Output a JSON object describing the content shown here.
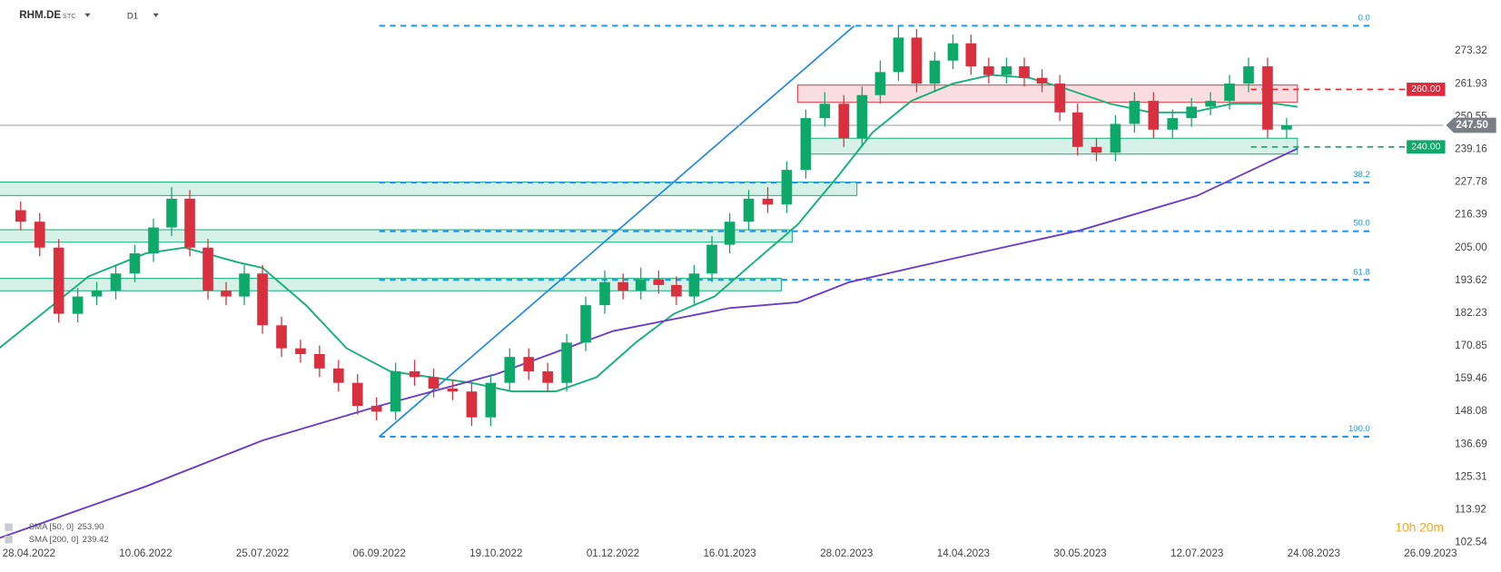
{
  "chart_data": {
    "type": "candlestick",
    "symbol": "RHM.DE",
    "symbol_tag": "STC",
    "interval": "D1",
    "timer": "10h 20m",
    "up_color": "#0fa86b",
    "down_color": "#d9303f",
    "ylim": [
      100.55,
      291.05
    ],
    "yticks": [
      {
        "value": 102.54,
        "label": "102.54"
      },
      {
        "value": 113.92,
        "label": "113.92"
      },
      {
        "value": 125.31,
        "label": "125.31"
      },
      {
        "value": 136.69,
        "label": "136.69"
      },
      148.08,
      {
        "value": 159.46,
        "label": "159.46"
      },
      {
        "value": 170.85,
        "label": "170.85"
      },
      {
        "value": 182.23,
        "label": "182.23"
      },
      {
        "value": 193.62,
        "label": "193.62"
      },
      {
        "value": 205,
        "label": "205.00"
      },
      {
        "value": 216.39,
        "label": "216.39"
      },
      {
        "value": 227.78,
        "label": "227.78"
      },
      {
        "value": 239.16,
        "label": "239.16"
      },
      {
        "value": 250.55,
        "label": "250.55"
      },
      {
        "value": 261.93,
        "label": "261.93"
      },
      {
        "value": 273.32,
        "label": "273.32"
      }
    ],
    "xticks": [
      {
        "value": "2022-04-28",
        "label": "28.04.2022"
      },
      {
        "value": "2022-06-10",
        "label": "10.06.2022"
      },
      {
        "value": "2022-07-25",
        "label": "25.07.2022"
      },
      {
        "value": "2022-09-06",
        "label": "06.09.2022"
      },
      {
        "value": "2022-10-19",
        "label": "19.10.2022"
      },
      {
        "value": "2022-12-01",
        "label": "01.12.2022"
      },
      {
        "value": "2023-01-16",
        "label": "16.01.2023"
      },
      {
        "value": "2023-02-28",
        "label": "28.02.2023"
      },
      {
        "value": "2023-04-14",
        "label": "14.04.2023"
      },
      {
        "value": "2023-05-30",
        "label": "30.05.2023"
      },
      {
        "value": "2023-07-12",
        "label": "12.07.2023"
      },
      {
        "value": "2023-08-24",
        "label": "24.08.2023"
      },
      {
        "value": "2023-09-26",
        "label": "26.09.2023"
      }
    ],
    "candles": {
      "x": [
        "2022-04-25",
        "2022-05-02",
        "2022-05-09",
        "2022-05-16",
        "2022-05-23",
        "2022-05-30",
        "2022-06-06",
        "2022-06-13",
        "2022-06-20",
        "2022-06-27",
        "2022-07-04",
        "2022-07-11",
        "2022-07-18",
        "2022-07-25",
        "2022-08-01",
        "2022-08-08",
        "2022-08-15",
        "2022-08-22",
        "2022-08-29",
        "2022-09-05",
        "2022-09-12",
        "2022-09-19",
        "2022-09-26",
        "2022-10-03",
        "2022-10-10",
        "2022-10-17",
        "2022-10-24",
        "2022-10-31",
        "2022-11-07",
        "2022-11-14",
        "2022-11-21",
        "2022-11-28",
        "2022-12-05",
        "2022-12-12",
        "2022-12-19",
        "2022-12-26",
        "2023-01-02",
        "2023-01-09",
        "2023-01-16",
        "2023-01-23",
        "2023-01-30",
        "2023-02-06",
        "2023-02-13",
        "2023-02-20",
        "2023-02-27",
        "2023-03-06",
        "2023-03-13",
        "2023-03-20",
        "2023-03-27",
        "2023-04-03",
        "2023-04-10",
        "2023-04-17",
        "2023-04-24",
        "2023-05-01",
        "2023-05-08",
        "2023-05-15",
        "2023-05-22",
        "2023-05-29",
        "2023-06-05",
        "2023-06-12",
        "2023-06-19",
        "2023-06-26",
        "2023-07-03",
        "2023-07-10",
        "2023-07-17",
        "2023-07-24",
        "2023-07-31",
        "2023-08-07",
        "2023-08-14"
      ],
      "open": [
        218,
        214,
        205,
        182,
        188,
        190,
        196,
        203,
        212,
        222,
        205,
        190,
        188,
        196,
        178,
        170,
        168,
        163,
        158,
        150,
        148,
        162,
        160,
        156,
        155,
        146,
        158,
        167,
        162,
        158,
        172,
        185,
        193,
        190,
        194,
        192,
        188,
        196,
        206,
        214,
        222,
        220,
        232,
        250,
        255,
        243,
        258,
        266,
        278,
        262,
        270,
        276,
        268,
        265,
        268,
        264,
        262,
        252,
        240,
        238,
        248,
        256,
        246,
        250,
        254,
        256,
        262,
        268,
        246
      ],
      "high": [
        221,
        217,
        208,
        191,
        193,
        199,
        206,
        215,
        226,
        225,
        208,
        193,
        199,
        199,
        181,
        173,
        171,
        166,
        161,
        153,
        165,
        166,
        163,
        159,
        158,
        161,
        170,
        170,
        165,
        175,
        188,
        197,
        196,
        198,
        197,
        195,
        199,
        209,
        217,
        225,
        226,
        235,
        253,
        259,
        258,
        261,
        270,
        282,
        281,
        273,
        279,
        279,
        271,
        271,
        271,
        267,
        265,
        255,
        243,
        251,
        259,
        259,
        253,
        257,
        259,
        265,
        271,
        271,
        250
      ],
      "low": [
        211,
        202,
        179,
        179,
        185,
        187,
        193,
        200,
        209,
        202,
        187,
        185,
        185,
        175,
        167,
        165,
        160,
        155,
        147,
        145,
        145,
        157,
        153,
        152,
        143,
        143,
        155,
        159,
        155,
        155,
        169,
        182,
        187,
        187,
        189,
        185,
        185,
        193,
        203,
        211,
        217,
        217,
        229,
        247,
        240,
        240,
        255,
        263,
        259,
        259,
        267,
        265,
        262,
        262,
        261,
        259,
        249,
        237,
        235,
        235,
        245,
        243,
        243,
        247,
        251,
        253,
        259,
        243,
        243
      ],
      "close": [
        214,
        205,
        182,
        188,
        190,
        196,
        203,
        212,
        222,
        205,
        190,
        188,
        196,
        178,
        170,
        168,
        163,
        158,
        150,
        148,
        162,
        160,
        156,
        155,
        146,
        158,
        167,
        162,
        158,
        172,
        185,
        193,
        190,
        194,
        192,
        188,
        196,
        206,
        214,
        222,
        220,
        232,
        250,
        255,
        243,
        258,
        266,
        278,
        262,
        270,
        276,
        268,
        265,
        268,
        264,
        262,
        252,
        240,
        238,
        248,
        256,
        246,
        250,
        254,
        256,
        262,
        268,
        246,
        247.5
      ]
    },
    "series": [
      {
        "name": "SMA [50, 0]",
        "legend_value": "253.90",
        "color": "#14b07a",
        "x": [
          "2022-04-17",
          "2022-05-20",
          "2022-06-10",
          "2022-06-25",
          "2022-07-15",
          "2022-07-25",
          "2022-08-10",
          "2022-08-25",
          "2022-09-10",
          "2022-09-25",
          "2022-10-10",
          "2022-10-25",
          "2022-11-10",
          "2022-11-25",
          "2022-12-10",
          "2022-12-25",
          "2023-01-10",
          "2023-01-25",
          "2023-02-10",
          "2023-02-25",
          "2023-03-10",
          "2023-03-25",
          "2023-04-10",
          "2023-04-25",
          "2023-05-10",
          "2023-05-25",
          "2023-06-10",
          "2023-06-25",
          "2023-07-10",
          "2023-07-25",
          "2023-08-10",
          "2023-08-18"
        ],
        "values": [
          170,
          195,
          203,
          205,
          200,
          198,
          185,
          170,
          162,
          160,
          158,
          155,
          155,
          160,
          172,
          182,
          188,
          200,
          213,
          230,
          245,
          256,
          262,
          265,
          264,
          260,
          255,
          252,
          252,
          255,
          255,
          253.9
        ]
      },
      {
        "name": "SMA [200, 0]",
        "legend_value": "239.42",
        "color": "#6a3dc9",
        "x": [
          "2022-04-17",
          "2022-06-10",
          "2022-07-25",
          "2022-09-06",
          "2022-10-19",
          "2022-12-01",
          "2023-01-16",
          "2023-02-10",
          "2023-03-01",
          "2023-04-14",
          "2023-05-30",
          "2023-07-12",
          "2023-08-18"
        ],
        "values": [
          104,
          122,
          138,
          150,
          161,
          176,
          184,
          186,
          193,
          202,
          211,
          223,
          239.42
        ]
      }
    ],
    "zones": [
      {
        "x": [
          "2022-04-17",
          "2023-03-04"
        ],
        "values": [
          223.1,
          227.8
        ],
        "color": "#1db37c"
      },
      {
        "x": [
          "2022-04-17",
          "2023-02-08"
        ],
        "values": [
          206.9,
          211.2
        ],
        "color": "#1db37c"
      },
      {
        "x": [
          "2022-04-17",
          "2023-02-04"
        ],
        "values": [
          190.0,
          194.3
        ],
        "color": "#1db37c"
      },
      {
        "x": [
          "2023-02-10",
          "2023-08-18"
        ],
        "values": [
          255.5,
          261.5
        ],
        "color": "#e0404e"
      },
      {
        "x": [
          "2023-02-12",
          "2023-08-18"
        ],
        "values": [
          237.5,
          243
        ],
        "color": "#1db37c"
      }
    ],
    "trendline": {
      "x": [
        "2022-09-06",
        "2023-03-03"
      ],
      "values": [
        139.3,
        282.1
      ],
      "color": "#1e88e5"
    },
    "fib_x": [
      "2022-09-06",
      "2023-09-10"
    ],
    "fib_levels": [
      {
        "value": 282.1,
        "label": "0.0"
      },
      {
        "value": 227.6,
        "label": "38.2"
      },
      {
        "value": 210.7,
        "label": "50.0"
      },
      {
        "value": 193.8,
        "label": "61.8"
      },
      {
        "value": 139.3,
        "label": "100.0"
      }
    ],
    "levels": [
      {
        "value": 260,
        "label": "260.00",
        "color": "#e0293a"
      },
      {
        "value": 240,
        "label": "240.00",
        "color": "#0fa86b"
      }
    ],
    "last_price": {
      "value": 247.5,
      "label": "247.50",
      "color": "#7a7f87"
    }
  }
}
